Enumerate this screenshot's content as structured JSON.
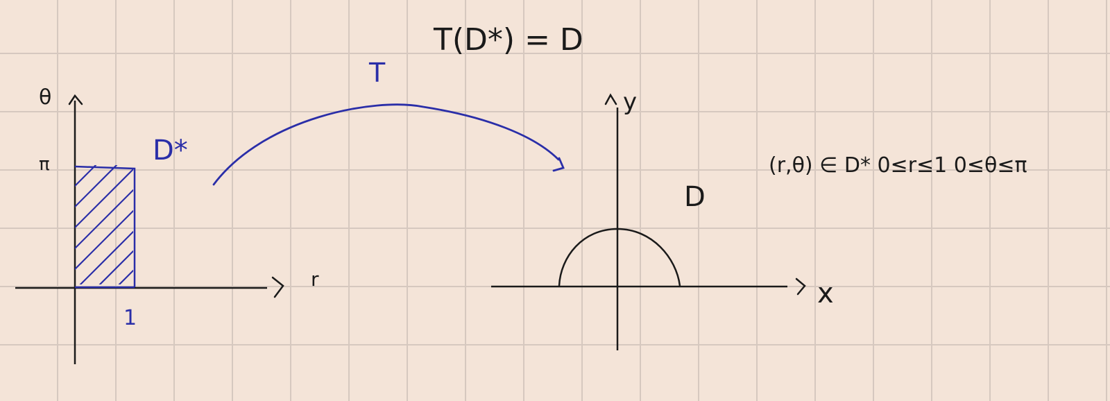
{
  "colors": {
    "ink": "#1a1a1a",
    "blue_ink": "#2a2ea8",
    "paper": "#f4e4d8",
    "grid": "#d6c8bf"
  },
  "title": "T(D*) = D",
  "map_label": "T",
  "left_plot": {
    "y_axis_label": "θ",
    "x_axis_label": "r",
    "y_tick_label": "π",
    "x_tick_label": "1",
    "region_label": "D*"
  },
  "right_plot": {
    "y_axis_label": "y",
    "x_axis_label": "x",
    "region_label": "D"
  },
  "condition": "(r,θ) ∈ D*  0≤r≤1  0≤θ≤π"
}
